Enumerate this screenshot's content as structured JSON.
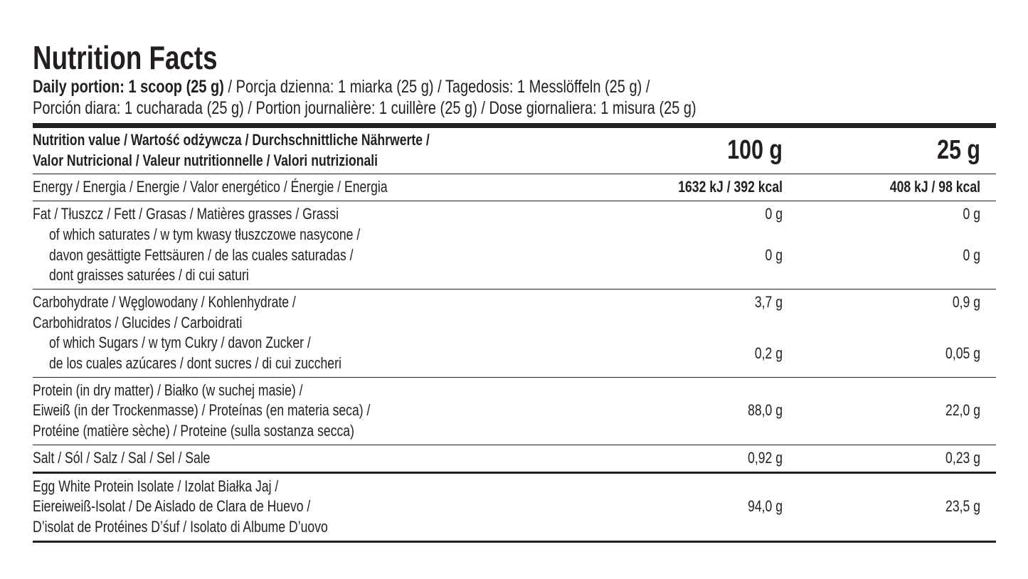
{
  "title": "Nutrition Facts",
  "serving": {
    "bold": "Daily portion: 1 scoop (25 g)",
    "line1": "/ Porcja dzienna: 1 miarka (25 g) / Tagedosis: 1 Messlöffeln (25 g) /",
    "line2": "Porción diara: 1 cucharada (25 g) / Portion journalière: 1 cuillère (25 g) / Dose giornaliera: 1 misura (25 g)"
  },
  "table": {
    "header": {
      "label": [
        "Nutrition value / Wartość odżywcza / Durchschnittliche Nährwerte /",
        "Valor Nutricional / Valeur nutritionnelle / Valori nutrizionali"
      ],
      "columns": [
        "100 g",
        "25 g"
      ]
    },
    "sections": [
      {
        "items": [
          {
            "label": [
              "Energy / Energia / Energie / Valor energético / Énergie / Energia"
            ],
            "sub": false,
            "values": [
              "1632 kJ / 392 kcal",
              "408 kJ / 98 kcal"
            ]
          }
        ]
      },
      {
        "items": [
          {
            "label": [
              "Fat / Tłuszcz / Fett / Grasas / Matières grasses / Grassi"
            ],
            "sub": false,
            "values": [
              "0 g",
              "0 g"
            ]
          },
          {
            "label": [
              "of which saturates / w tym kwasy tłuszczowe nasycone /",
              "davon gesättigte Fettsäuren / de las cuales saturadas /",
              "dont graisses saturées / di cui saturi"
            ],
            "sub": true,
            "values": [
              "0 g",
              "0 g"
            ]
          }
        ]
      },
      {
        "items": [
          {
            "label": [
              "Carbohydrate / Węglowodany / Kohlenhydrate /",
              "Carbohidratos / Glucides / Carboidrati"
            ],
            "sub": false,
            "values": [
              "3,7 g",
              "0,9 g"
            ]
          },
          {
            "label": [
              "of which Sugars / w tym Cukry / davon Zucker /",
              "de los cuales azúcares / dont sucres / di cui zuccheri"
            ],
            "sub": true,
            "values": [
              "0,2 g",
              "0,05 g"
            ]
          }
        ]
      },
      {
        "items": [
          {
            "label": [
              "Protein (in dry matter) / Białko (w suchej masie) /",
              "Eiweiß (in der Trockenmasse) / Proteínas (en materia seca) /",
              "Protéine (matière sèche) / Proteine (sulla sostanza secca)"
            ],
            "sub": false,
            "values": [
              "88,0 g",
              "22,0 g"
            ]
          }
        ]
      },
      {
        "items": [
          {
            "label": [
              "Salt / Sól / Salz / Sal / Sel / Sale"
            ],
            "sub": false,
            "values": [
              "0,92 g",
              "0,23 g"
            ]
          }
        ]
      },
      {
        "items": [
          {
            "label": [
              "Egg White Protein Isolate / Izolat Białka Jaj /",
              "Eiereiweiß-Isolat / De Aislado de Clara de Huevo /",
              "D’isolat de Protéines D’śuf / Isolato di Albume D’uovo"
            ],
            "sub": false,
            "values": [
              "94,0 g",
              "23,5 g"
            ]
          }
        ]
      }
    ]
  }
}
